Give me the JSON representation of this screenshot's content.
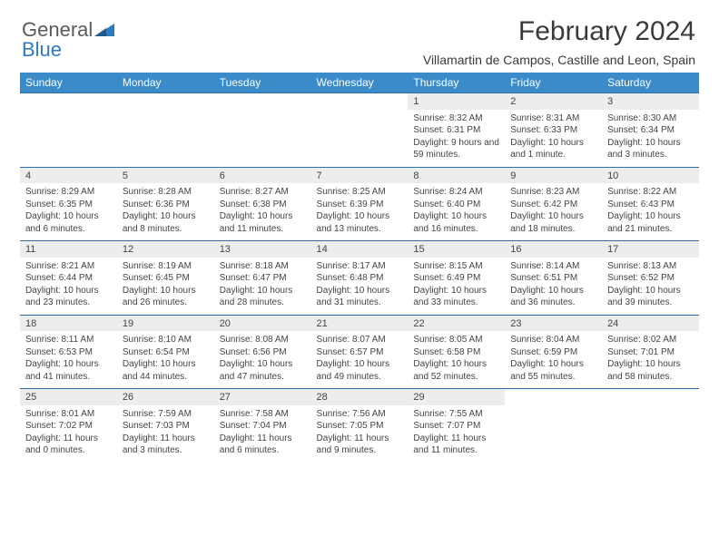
{
  "logo": {
    "word1": "General",
    "word2": "Blue"
  },
  "header": {
    "title": "February 2024",
    "location": "Villamartin de Campos, Castille and Leon, Spain"
  },
  "colors": {
    "header_bg": "#3b8bc9",
    "daynum_bg": "#eceded",
    "rule": "#2f6fa8",
    "text": "#444444",
    "logo_gray": "#5a5a5a",
    "logo_blue": "#2f7abf"
  },
  "daynames": [
    "Sunday",
    "Monday",
    "Tuesday",
    "Wednesday",
    "Thursday",
    "Friday",
    "Saturday"
  ],
  "weeks": [
    {
      "nums": [
        "",
        "",
        "",
        "",
        "1",
        "2",
        "3"
      ],
      "details": [
        "",
        "",
        "",
        "",
        "Sunrise: 8:32 AM\nSunset: 6:31 PM\nDaylight: 9 hours and 59 minutes.",
        "Sunrise: 8:31 AM\nSunset: 6:33 PM\nDaylight: 10 hours and 1 minute.",
        "Sunrise: 8:30 AM\nSunset: 6:34 PM\nDaylight: 10 hours and 3 minutes."
      ]
    },
    {
      "nums": [
        "4",
        "5",
        "6",
        "7",
        "8",
        "9",
        "10"
      ],
      "details": [
        "Sunrise: 8:29 AM\nSunset: 6:35 PM\nDaylight: 10 hours and 6 minutes.",
        "Sunrise: 8:28 AM\nSunset: 6:36 PM\nDaylight: 10 hours and 8 minutes.",
        "Sunrise: 8:27 AM\nSunset: 6:38 PM\nDaylight: 10 hours and 11 minutes.",
        "Sunrise: 8:25 AM\nSunset: 6:39 PM\nDaylight: 10 hours and 13 minutes.",
        "Sunrise: 8:24 AM\nSunset: 6:40 PM\nDaylight: 10 hours and 16 minutes.",
        "Sunrise: 8:23 AM\nSunset: 6:42 PM\nDaylight: 10 hours and 18 minutes.",
        "Sunrise: 8:22 AM\nSunset: 6:43 PM\nDaylight: 10 hours and 21 minutes."
      ]
    },
    {
      "nums": [
        "11",
        "12",
        "13",
        "14",
        "15",
        "16",
        "17"
      ],
      "details": [
        "Sunrise: 8:21 AM\nSunset: 6:44 PM\nDaylight: 10 hours and 23 minutes.",
        "Sunrise: 8:19 AM\nSunset: 6:45 PM\nDaylight: 10 hours and 26 minutes.",
        "Sunrise: 8:18 AM\nSunset: 6:47 PM\nDaylight: 10 hours and 28 minutes.",
        "Sunrise: 8:17 AM\nSunset: 6:48 PM\nDaylight: 10 hours and 31 minutes.",
        "Sunrise: 8:15 AM\nSunset: 6:49 PM\nDaylight: 10 hours and 33 minutes.",
        "Sunrise: 8:14 AM\nSunset: 6:51 PM\nDaylight: 10 hours and 36 minutes.",
        "Sunrise: 8:13 AM\nSunset: 6:52 PM\nDaylight: 10 hours and 39 minutes."
      ]
    },
    {
      "nums": [
        "18",
        "19",
        "20",
        "21",
        "22",
        "23",
        "24"
      ],
      "details": [
        "Sunrise: 8:11 AM\nSunset: 6:53 PM\nDaylight: 10 hours and 41 minutes.",
        "Sunrise: 8:10 AM\nSunset: 6:54 PM\nDaylight: 10 hours and 44 minutes.",
        "Sunrise: 8:08 AM\nSunset: 6:56 PM\nDaylight: 10 hours and 47 minutes.",
        "Sunrise: 8:07 AM\nSunset: 6:57 PM\nDaylight: 10 hours and 49 minutes.",
        "Sunrise: 8:05 AM\nSunset: 6:58 PM\nDaylight: 10 hours and 52 minutes.",
        "Sunrise: 8:04 AM\nSunset: 6:59 PM\nDaylight: 10 hours and 55 minutes.",
        "Sunrise: 8:02 AM\nSunset: 7:01 PM\nDaylight: 10 hours and 58 minutes."
      ]
    },
    {
      "nums": [
        "25",
        "26",
        "27",
        "28",
        "29",
        "",
        ""
      ],
      "details": [
        "Sunrise: 8:01 AM\nSunset: 7:02 PM\nDaylight: 11 hours and 0 minutes.",
        "Sunrise: 7:59 AM\nSunset: 7:03 PM\nDaylight: 11 hours and 3 minutes.",
        "Sunrise: 7:58 AM\nSunset: 7:04 PM\nDaylight: 11 hours and 6 minutes.",
        "Sunrise: 7:56 AM\nSunset: 7:05 PM\nDaylight: 11 hours and 9 minutes.",
        "Sunrise: 7:55 AM\nSunset: 7:07 PM\nDaylight: 11 hours and 11 minutes.",
        "",
        ""
      ]
    }
  ]
}
